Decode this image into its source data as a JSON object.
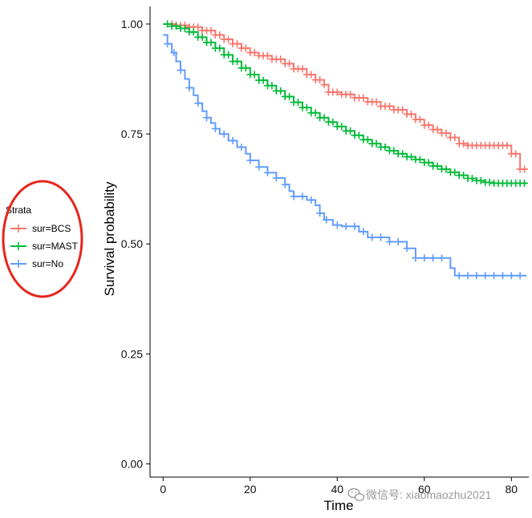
{
  "chart_data": {
    "type": "line",
    "subtype": "kaplan-meier-survival",
    "title": "",
    "xlabel": "Time",
    "ylabel": "Survival probability",
    "xlim": [
      -3,
      84
    ],
    "ylim": [
      -0.03,
      1.04
    ],
    "x_ticks": [
      0,
      20,
      40,
      60,
      80
    ],
    "x_tick_labels": [
      "0",
      "20",
      "40",
      "60",
      "80"
    ],
    "y_ticks": [
      0,
      0.25,
      0.5,
      0.75,
      1.0
    ],
    "y_tick_labels": [
      "0.00",
      "0.25",
      "0.50",
      "0.75",
      "1.00"
    ],
    "grid": false,
    "legend": {
      "title": "Strata",
      "position": "left",
      "highlighted": true,
      "highlight_color": "#e8251b"
    },
    "series": [
      {
        "name": "sur=BCS",
        "color": "#F8766D",
        "steps": [
          [
            0,
            1.0
          ],
          [
            3,
            0.997
          ],
          [
            6,
            0.993
          ],
          [
            9,
            0.985
          ],
          [
            12,
            0.975
          ],
          [
            14,
            0.965
          ],
          [
            16,
            0.955
          ],
          [
            18,
            0.945
          ],
          [
            20,
            0.935
          ],
          [
            22,
            0.928
          ],
          [
            25,
            0.92
          ],
          [
            28,
            0.91
          ],
          [
            30,
            0.898
          ],
          [
            33,
            0.885
          ],
          [
            35,
            0.873
          ],
          [
            37,
            0.862
          ],
          [
            38,
            0.845
          ],
          [
            41,
            0.84
          ],
          [
            44,
            0.832
          ],
          [
            47,
            0.823
          ],
          [
            50,
            0.813
          ],
          [
            53,
            0.805
          ],
          [
            56,
            0.795
          ],
          [
            58,
            0.783
          ],
          [
            60,
            0.77
          ],
          [
            62,
            0.76
          ],
          [
            64,
            0.752
          ],
          [
            66,
            0.742
          ],
          [
            68,
            0.728
          ],
          [
            70,
            0.724
          ],
          [
            80,
            0.705
          ],
          [
            82,
            0.67
          ],
          [
            83.5,
            0.67
          ]
        ],
        "censor": [
          1,
          2,
          3,
          4,
          5,
          6,
          7,
          8,
          9,
          10,
          11,
          12,
          13,
          14,
          15,
          16,
          17,
          18,
          19,
          20,
          21,
          22,
          23,
          24,
          25,
          26,
          27,
          28,
          29,
          30,
          31,
          32,
          33,
          34,
          35,
          36,
          37,
          38,
          39,
          40,
          41,
          42,
          43,
          44,
          45,
          46,
          47,
          48,
          49,
          50,
          51,
          52,
          53,
          54,
          55,
          56,
          57,
          58,
          59,
          60,
          61,
          62,
          63,
          64,
          65,
          66,
          67,
          68,
          69,
          70,
          71,
          72,
          73,
          74,
          75,
          76,
          77,
          78,
          79,
          80,
          81,
          82,
          83
        ]
      },
      {
        "name": "sur=MAST",
        "color": "#00BA38",
        "steps": [
          [
            0,
            1.0
          ],
          [
            2,
            0.995
          ],
          [
            4,
            0.99
          ],
          [
            6,
            0.982
          ],
          [
            8,
            0.97
          ],
          [
            10,
            0.958
          ],
          [
            12,
            0.945
          ],
          [
            14,
            0.93
          ],
          [
            16,
            0.915
          ],
          [
            18,
            0.9
          ],
          [
            20,
            0.885
          ],
          [
            22,
            0.872
          ],
          [
            24,
            0.86
          ],
          [
            26,
            0.848
          ],
          [
            28,
            0.835
          ],
          [
            30,
            0.822
          ],
          [
            32,
            0.81
          ],
          [
            34,
            0.798
          ],
          [
            36,
            0.787
          ],
          [
            38,
            0.777
          ],
          [
            40,
            0.767
          ],
          [
            42,
            0.757
          ],
          [
            44,
            0.747
          ],
          [
            46,
            0.737
          ],
          [
            48,
            0.728
          ],
          [
            50,
            0.72
          ],
          [
            52,
            0.712
          ],
          [
            54,
            0.705
          ],
          [
            56,
            0.698
          ],
          [
            58,
            0.692
          ],
          [
            60,
            0.685
          ],
          [
            62,
            0.677
          ],
          [
            64,
            0.67
          ],
          [
            66,
            0.663
          ],
          [
            68,
            0.656
          ],
          [
            70,
            0.649
          ],
          [
            72,
            0.644
          ],
          [
            74,
            0.64
          ],
          [
            76,
            0.638
          ],
          [
            83.5,
            0.638
          ]
        ],
        "censor": [
          1,
          2,
          3,
          4,
          5,
          6,
          7,
          8,
          9,
          10,
          11,
          12,
          13,
          14,
          15,
          16,
          17,
          18,
          19,
          20,
          21,
          22,
          23,
          24,
          25,
          26,
          27,
          28,
          29,
          30,
          31,
          32,
          33,
          34,
          35,
          36,
          37,
          38,
          39,
          40,
          41,
          42,
          43,
          44,
          45,
          46,
          47,
          48,
          49,
          50,
          51,
          52,
          53,
          54,
          55,
          56,
          57,
          58,
          59,
          60,
          61,
          62,
          63,
          64,
          65,
          66,
          67,
          68,
          69,
          70,
          71,
          72,
          73,
          74,
          75,
          76,
          77,
          78,
          79,
          80,
          81,
          82,
          83
        ]
      },
      {
        "name": "sur=No",
        "color": "#619CFF",
        "steps": [
          [
            0,
            0.975
          ],
          [
            1,
            0.955
          ],
          [
            2,
            0.935
          ],
          [
            3,
            0.915
          ],
          [
            4,
            0.895
          ],
          [
            5,
            0.875
          ],
          [
            6,
            0.855
          ],
          [
            7,
            0.838
          ],
          [
            8,
            0.82
          ],
          [
            9,
            0.802
          ],
          [
            10,
            0.787
          ],
          [
            11,
            0.775
          ],
          [
            12,
            0.762
          ],
          [
            13,
            0.75
          ],
          [
            15,
            0.735
          ],
          [
            17,
            0.72
          ],
          [
            19,
            0.705
          ],
          [
            20,
            0.69
          ],
          [
            22,
            0.675
          ],
          [
            24,
            0.662
          ],
          [
            26,
            0.65
          ],
          [
            28,
            0.635
          ],
          [
            29,
            0.62
          ],
          [
            30,
            0.608
          ],
          [
            33,
            0.6
          ],
          [
            35,
            0.588
          ],
          [
            36,
            0.57
          ],
          [
            37,
            0.555
          ],
          [
            39,
            0.543
          ],
          [
            41,
            0.54
          ],
          [
            45,
            0.528
          ],
          [
            47,
            0.515
          ],
          [
            52,
            0.505
          ],
          [
            56,
            0.49
          ],
          [
            58,
            0.468
          ],
          [
            66,
            0.445
          ],
          [
            67,
            0.428
          ],
          [
            83.5,
            0.428
          ]
        ],
        "censor": [
          1,
          2.5,
          4,
          6,
          8,
          10,
          12,
          14,
          16,
          18,
          20,
          22,
          24,
          26,
          28,
          30,
          32,
          34,
          36,
          37.5,
          40,
          42,
          44,
          46,
          48,
          50,
          52,
          54,
          56,
          58,
          60,
          62,
          64,
          68,
          70,
          72,
          74,
          76,
          78,
          80,
          82
        ]
      }
    ]
  },
  "watermark": {
    "icon": "wechat-icon",
    "text": "微信号: xiaomaozhu2021"
  }
}
